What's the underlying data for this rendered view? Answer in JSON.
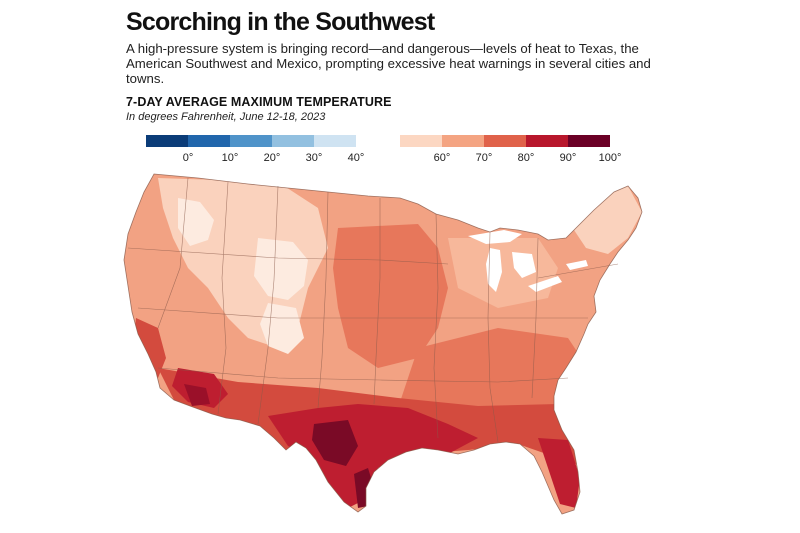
{
  "headline": "Scorching in the Southwest",
  "deck": "A high-pressure system is bringing record—and dangerous—levels of heat to Texas, the American Southwest and Mexico, prompting excessive heat warnings in several cities and towns.",
  "chart_title": "7-DAY AVERAGE MAXIMUM TEMPERATURE",
  "chart_subtitle": "In degrees Fahrenheit, June 12-18, 2023",
  "legend": {
    "cold": {
      "colors": [
        "#0b3c78",
        "#2166ac",
        "#4f93c9",
        "#92c0e0",
        "#cfe3f2"
      ],
      "labels": [
        "0°",
        "10°",
        "20°",
        "30°",
        "40°"
      ]
    },
    "hot": {
      "colors": [
        "#fcd7c2",
        "#f4a482",
        "#e0624a",
        "#b8172c",
        "#6b0026"
      ],
      "labels": [
        "60°",
        "70°",
        "80°",
        "90°",
        "100°"
      ]
    }
  },
  "map_colors": {
    "base": "#f2a283",
    "light": "#fad2bd",
    "pale": "#fdebe0",
    "mid": "#e7775b",
    "hot": "#d34b3e",
    "hotter": "#be1e30",
    "hottest": "#7a0a26",
    "lake": "#ffffff",
    "border": "#8a5a4a"
  }
}
